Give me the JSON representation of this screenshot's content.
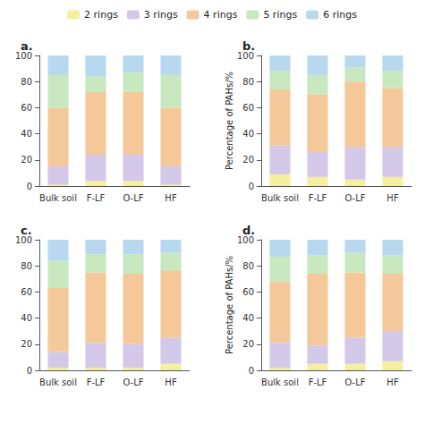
{
  "chart_data": [
    {
      "type": "bar",
      "title": "a.",
      "stacked": true,
      "grid": false,
      "legend": "top",
      "categories": [
        "Bulk soil",
        "F-LF",
        "O-LF",
        "HF"
      ],
      "series": [
        {
          "name": "2 rings",
          "color": "#f5f0a0",
          "values": [
            1,
            4,
            4,
            1
          ]
        },
        {
          "name": "3 rings",
          "color": "#d4c8e8",
          "values": [
            14,
            20,
            20,
            14
          ]
        },
        {
          "name": "4 rings",
          "color": "#f5c89a",
          "values": [
            45,
            48,
            48,
            45
          ]
        },
        {
          "name": "5 rings",
          "color": "#c8e8c0",
          "values": [
            25,
            12,
            15,
            25
          ]
        },
        {
          "name": "6 rings",
          "color": "#b8d8f0",
          "values": [
            15,
            16,
            13,
            15
          ]
        }
      ],
      "ylim": [
        0,
        100
      ],
      "yticks": [
        0,
        20,
        40,
        60,
        80,
        100
      ]
    },
    {
      "type": "bar",
      "title": "b.",
      "ylabel": "Percentage of PAHs/%",
      "stacked": true,
      "grid": false,
      "legend": "top",
      "categories": [
        "Bulk soil",
        "F-LF",
        "O-LF",
        "HF"
      ],
      "series": [
        {
          "name": "2 rings",
          "color": "#f5f0a0",
          "values": [
            9,
            7,
            5,
            7
          ]
        },
        {
          "name": "3 rings",
          "color": "#d4c8e8",
          "values": [
            22,
            19,
            25,
            23
          ]
        },
        {
          "name": "4 rings",
          "color": "#f5c89a",
          "values": [
            43,
            44,
            50,
            45
          ]
        },
        {
          "name": "5 rings",
          "color": "#c8e8c0",
          "values": [
            14,
            15,
            11,
            13
          ]
        },
        {
          "name": "6 rings",
          "color": "#b8d8f0",
          "values": [
            12,
            15,
            9,
            12
          ]
        }
      ],
      "ylim": [
        0,
        100
      ],
      "yticks": [
        0,
        20,
        40,
        60,
        80,
        100
      ]
    },
    {
      "type": "bar",
      "title": "c.",
      "stacked": true,
      "grid": false,
      "legend": "top",
      "categories": [
        "Bulk soil",
        "F-LF",
        "O-LF",
        "HF"
      ],
      "series": [
        {
          "name": "2 rings",
          "color": "#f5f0a0",
          "values": [
            2,
            2,
            2,
            5
          ]
        },
        {
          "name": "3 rings",
          "color": "#d4c8e8",
          "values": [
            12,
            19,
            18,
            20
          ]
        },
        {
          "name": "4 rings",
          "color": "#f5c89a",
          "values": [
            49,
            54,
            54,
            51
          ]
        },
        {
          "name": "5 rings",
          "color": "#c8e8c0",
          "values": [
            21,
            14,
            15,
            14
          ]
        },
        {
          "name": "6 rings",
          "color": "#b8d8f0",
          "values": [
            16,
            11,
            11,
            10
          ]
        }
      ],
      "ylim": [
        0,
        100
      ],
      "yticks": [
        0,
        20,
        40,
        60,
        80,
        100
      ]
    },
    {
      "type": "bar",
      "title": "d.",
      "ylabel": "Percentage of PAHs/%",
      "stacked": true,
      "grid": false,
      "legend": "top",
      "categories": [
        "Bulk soil",
        "F-LF",
        "O-LF",
        "HF"
      ],
      "series": [
        {
          "name": "2 rings",
          "color": "#f5f0a0",
          "values": [
            2,
            5,
            5,
            7
          ]
        },
        {
          "name": "3 rings",
          "color": "#d4c8e8",
          "values": [
            19,
            14,
            20,
            23
          ]
        },
        {
          "name": "4 rings",
          "color": "#f5c89a",
          "values": [
            47,
            55,
            50,
            44
          ]
        },
        {
          "name": "5 rings",
          "color": "#c8e8c0",
          "values": [
            19,
            14,
            15,
            14
          ]
        },
        {
          "name": "6 rings",
          "color": "#b8d8f0",
          "values": [
            13,
            12,
            10,
            12
          ]
        }
      ],
      "ylim": [
        0,
        100
      ],
      "yticks": [
        0,
        20,
        40,
        60,
        80,
        100
      ]
    }
  ]
}
